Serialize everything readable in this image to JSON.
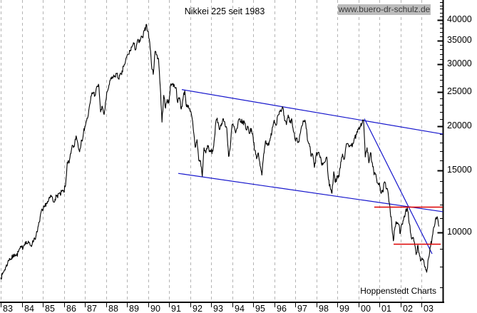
{
  "chart_data": {
    "type": "line",
    "title": "Nikkei 225 seit 1983",
    "watermark": "www.buero-dr-schulz.de",
    "source_label": "Hoppenstedt Charts",
    "grid": {
      "vertical": "dashed",
      "horizontal": "none",
      "grid_color": "#b4b4b4"
    },
    "x_axis": {
      "unit": "year",
      "first_tick_year": 1983,
      "tick_labels": [
        "83",
        "84",
        "85",
        "86",
        "87",
        "88",
        "89",
        "90",
        "91",
        "92",
        "93",
        "94",
        "95",
        "96",
        "97",
        "98",
        "99",
        "00",
        "01",
        "02",
        "03"
      ]
    },
    "y_axis": {
      "scale": "log",
      "side": "right",
      "major_ticks": [
        10000,
        15000,
        20000,
        25000,
        30000,
        35000,
        40000
      ],
      "minor_tick_step": 1000,
      "minor_tick_min": 7000,
      "minor_tick_max": 45000
    },
    "series": [
      {
        "name": "Nikkei 225",
        "color": "#000000",
        "interval": "monthly",
        "start_year": 1983,
        "values": [
          7450,
          7600,
          7800,
          8000,
          8200,
          8450,
          8400,
          8550,
          8700,
          8600,
          8800,
          9000,
          9060,
          9150,
          9400,
          9300,
          9350,
          9200,
          9300,
          9600,
          9700,
          10100,
          10700,
          11400,
          11500,
          11800,
          12100,
          12200,
          12500,
          12700,
          12200,
          12450,
          12650,
          12900,
          12750,
          13100,
          13000,
          13600,
          15850,
          15700,
          16700,
          17650,
          17500,
          18800,
          17850,
          16900,
          18300,
          18701,
          20000,
          20750,
          21550,
          23250,
          24850,
          24900,
          24500,
          26000,
          26000,
          21910,
          22700,
          21564,
          23600,
          25200,
          26250,
          27500,
          27400,
          27750,
          28200,
          27350,
          27900,
          27950,
          29580,
          30159,
          31580,
          31986,
          32840,
          33710,
          34267,
          32950,
          34954,
          34431,
          35637,
          35549,
          37269,
          38916,
          37189,
          34592,
          29980,
          28000,
          32500,
          31940,
          31036,
          25978,
          20500,
          24500,
          22455,
          23849,
          23293,
          26409,
          26292,
          26111,
          25790,
          23291,
          24121,
          22336,
          23916,
          25222,
          22687,
          22984,
          22023,
          21339,
          19346,
          17391,
          18348,
          15952,
          15910,
          14400,
          17400,
          16767,
          17684,
          16925,
          17024,
          16953,
          18591,
          20919,
          20552,
          19590,
          20380,
          21027,
          20106,
          19703,
          16406,
          17417,
          20229,
          19997,
          19112,
          19725,
          20974,
          20644,
          20449,
          20629,
          19564,
          19990,
          19070,
          19723,
          18650,
          17053,
          16140,
          16807,
          15437,
          14517,
          16677,
          18117,
          17913,
          17655,
          18580,
          19868,
          20813,
          20125,
          21407,
          22041,
          21956,
          22531,
          20693,
          20167,
          21556,
          20467,
          21020,
          19361,
          18330,
          18557,
          18003,
          19151,
          20069,
          20605,
          20331,
          18229,
          17888,
          16459,
          16636,
          15259,
          16628,
          16832,
          16527,
          15641,
          15671,
          15830,
          16379,
          14108,
          13406,
          12900,
          14884,
          13842,
          14499,
          14368,
          15837,
          16702,
          16112,
          17530,
          17862,
          17626,
          17605,
          17942,
          18558,
          18934,
          19540,
          19959,
          20337,
          20833,
          16332,
          17411,
          15727,
          16861,
          15747,
          14540,
          14649,
          13786,
          13844,
          12884,
          12999,
          13934,
          13262,
          12969,
          11861,
          10714,
          9450,
          10366,
          10697,
          10543,
          9919,
          10588,
          11025,
          11492,
          11764,
          10622,
          9878,
          9619,
          9383,
          8640,
          9216,
          8579,
          8339,
          8363,
          7973,
          7700,
          8425,
          9083,
          9563,
          10343,
          10900,
          11100,
          10400
        ]
      }
    ],
    "trendlines": [
      {
        "name": "channel-upper",
        "color": "#1515cc",
        "from": {
          "year": 1991.61,
          "value": 25400
        },
        "to": {
          "year": 2004.02,
          "value": 19000
        }
      },
      {
        "name": "channel-lower",
        "color": "#1515cc",
        "from": {
          "year": 1991.44,
          "value": 14700
        },
        "to": {
          "year": 2004.02,
          "value": 11450
        }
      },
      {
        "name": "downtrend",
        "color": "#1515cc",
        "from": {
          "year": 2000.29,
          "value": 21000
        },
        "to": {
          "year": 2003.51,
          "value": 8700
        }
      }
    ],
    "support_lines": [
      {
        "name": "resistance-level",
        "color": "#dd0000",
        "value": 11800,
        "from_year": 2000.76,
        "to_year": 2004.02
      },
      {
        "name": "support-level",
        "color": "#dd0000",
        "value": 9300,
        "from_year": 2001.68,
        "to_year": 2003.92
      }
    ]
  }
}
